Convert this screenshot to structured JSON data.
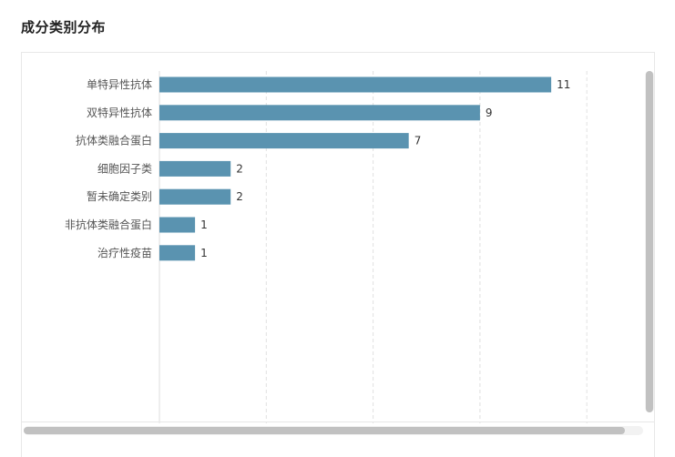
{
  "page_title": "成分类别分布",
  "chart_data": {
    "type": "bar",
    "orientation": "horizontal",
    "categories": [
      "单特异性抗体",
      "双特异性抗体",
      "抗体类融合蛋白",
      "细胞因子类",
      "暂未确定类别",
      "非抗体类融合蛋白",
      "治疗性疫苗"
    ],
    "values": [
      11,
      9,
      7,
      2,
      2,
      1,
      1
    ],
    "xlim": [
      0,
      13.5
    ],
    "x_grid_step": 3,
    "grid": "vertical dashed",
    "bar_color": "#5a93b0",
    "title": "",
    "xlabel": "",
    "ylabel": ""
  }
}
